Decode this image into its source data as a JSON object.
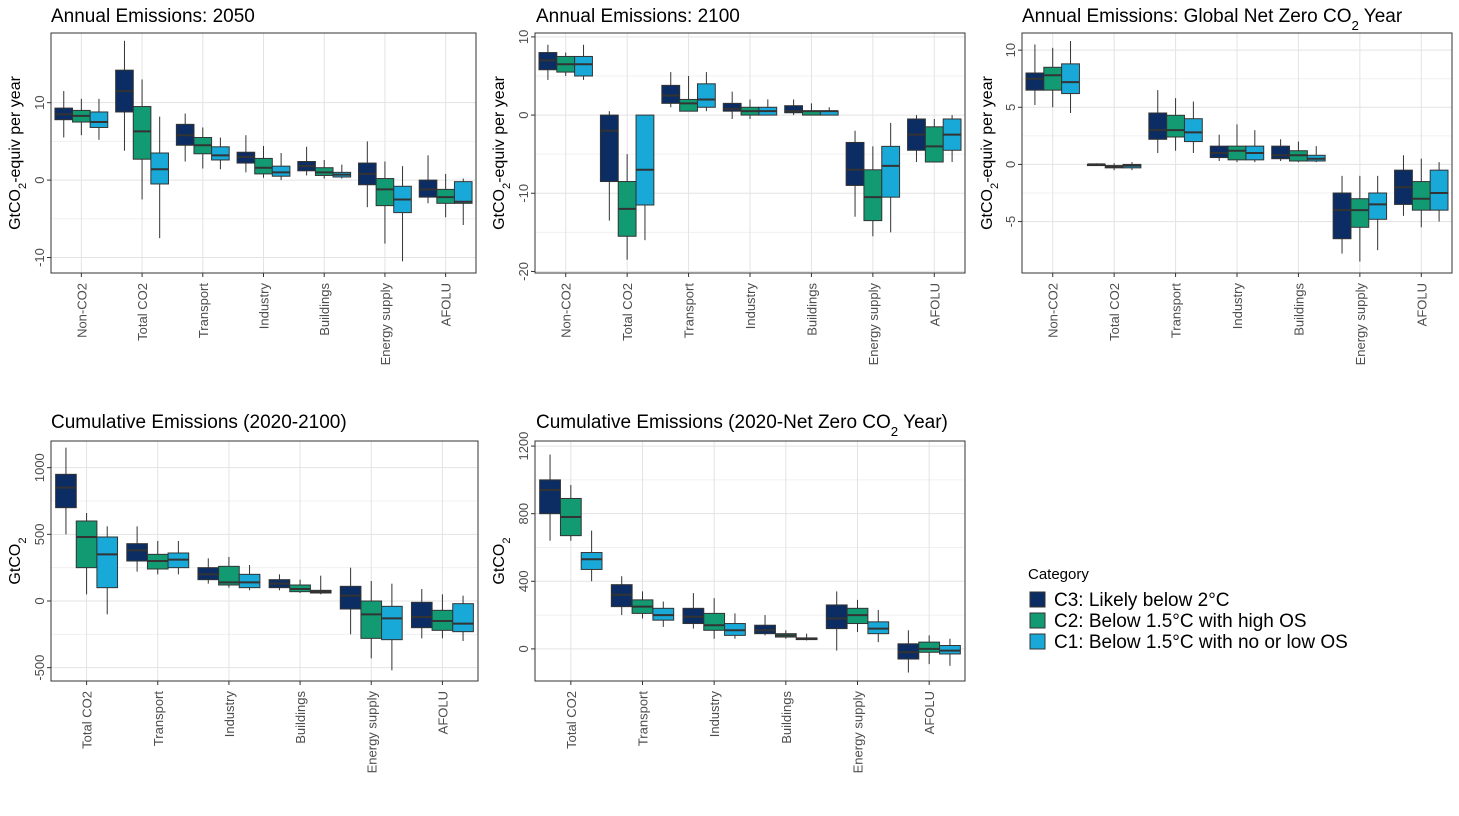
{
  "legend": {
    "title": "Category",
    "items": [
      {
        "label": "C3: Likely below 2°C",
        "color": "#0b2d63"
      },
      {
        "label": "C2: Below 1.5°C with high OS",
        "color": "#129a73"
      },
      {
        "label": "C1: Below 1.5°C with no or low OS",
        "color": "#18a9d8"
      }
    ]
  },
  "chart_data": [
    {
      "type": "box",
      "title": "Annual Emissions: 2050",
      "ylabel": "GtCO₂-equiv per year",
      "ylim": [
        -12,
        19
      ],
      "yticks": [
        -10,
        0,
        10
      ],
      "categories": [
        "Non-CO2",
        "Total CO2",
        "Transport",
        "Industry",
        "Buildings",
        "Energy supply",
        "AFOLU"
      ],
      "series": [
        {
          "name": "C3: Likely below 2°C",
          "boxes": [
            [
              5.5,
              7.8,
              8.5,
              9.3,
              11.5
            ],
            [
              3.8,
              8.8,
              11.5,
              14.2,
              18.0
            ],
            [
              2.4,
              4.5,
              5.8,
              7.2,
              8.6
            ],
            [
              1.0,
              2.2,
              3.0,
              3.6,
              5.8
            ],
            [
              0.6,
              1.2,
              1.8,
              2.4,
              4.3
            ],
            [
              -3.5,
              -0.6,
              0.8,
              2.2,
              5.0
            ],
            [
              -3.0,
              -2.2,
              -1.2,
              0.0,
              3.2
            ]
          ]
        },
        {
          "name": "C2: Below 1.5°C with high OS",
          "boxes": [
            [
              5.8,
              7.5,
              8.3,
              9.0,
              10.5
            ],
            [
              -2.5,
              2.7,
              6.3,
              9.5,
              13.0
            ],
            [
              1.5,
              3.4,
              4.5,
              5.5,
              6.8
            ],
            [
              0.3,
              0.8,
              1.6,
              2.8,
              4.4
            ],
            [
              0.2,
              0.6,
              1.0,
              1.6,
              2.6
            ],
            [
              -8.2,
              -3.3,
              -1.2,
              0.2,
              2.4
            ],
            [
              -4.8,
              -3.0,
              -2.2,
              -1.2,
              0.8
            ]
          ]
        },
        {
          "name": "C1: Below 1.5°C with no or low OS",
          "boxes": [
            [
              5.2,
              6.8,
              7.5,
              8.8,
              10.5
            ],
            [
              -7.5,
              -0.5,
              1.4,
              3.5,
              8.2
            ],
            [
              1.4,
              2.6,
              3.2,
              4.3,
              5.5
            ],
            [
              0.0,
              0.5,
              1.0,
              1.8,
              3.5
            ],
            [
              0.2,
              0.4,
              0.7,
              1.0,
              2.0
            ],
            [
              -10.5,
              -4.2,
              -2.5,
              -0.8,
              1.8
            ],
            [
              -5.8,
              -3.0,
              -2.8,
              -0.2,
              0.2
            ]
          ]
        }
      ]
    },
    {
      "type": "box",
      "title": "Annual Emissions: 2100",
      "ylabel": "GtCO₂-equiv per year",
      "ylim": [
        -20.2,
        10.5
      ],
      "yticks": [
        -20,
        -10,
        0,
        10
      ],
      "categories": [
        "Non-CO2",
        "Total CO2",
        "Transport",
        "Industry",
        "Buildings",
        "Energy supply",
        "AFOLU"
      ],
      "series": [
        {
          "name": "C3: Likely below 2°C",
          "boxes": [
            [
              4.5,
              5.8,
              7.0,
              8.0,
              9.0
            ],
            [
              -13.5,
              -8.5,
              -2.0,
              0.0,
              0.5
            ],
            [
              1.0,
              1.5,
              2.5,
              3.8,
              5.5
            ],
            [
              -0.5,
              0.5,
              0.8,
              1.5,
              3.0
            ],
            [
              0.0,
              0.3,
              0.5,
              1.2,
              2.0
            ],
            [
              -13.0,
              -9.0,
              -7.0,
              -3.5,
              -2.0
            ],
            [
              -6.0,
              -4.5,
              -2.5,
              -0.5,
              0.0
            ]
          ]
        },
        {
          "name": "C2: Below 1.5°C with high OS",
          "boxes": [
            [
              5.0,
              5.5,
              6.5,
              7.5,
              8.0
            ],
            [
              -18.5,
              -15.5,
              -12.0,
              -8.5,
              -5.0
            ],
            [
              0.5,
              0.5,
              1.5,
              2.0,
              5.0
            ],
            [
              -0.5,
              0.0,
              0.5,
              1.0,
              2.0
            ],
            [
              0.0,
              0.0,
              0.5,
              0.5,
              1.5
            ],
            [
              -15.5,
              -13.5,
              -10.5,
              -7.0,
              -4.0
            ],
            [
              -6.0,
              -6.0,
              -4.0,
              -1.5,
              -0.5
            ]
          ]
        },
        {
          "name": "C1: Below 1.5°C with no or low OS",
          "boxes": [
            [
              4.5,
              5.0,
              6.5,
              7.5,
              9.0
            ],
            [
              -16.0,
              -11.5,
              -7.0,
              0.0,
              0.0
            ],
            [
              0.5,
              1.0,
              2.0,
              4.0,
              5.5
            ],
            [
              0.0,
              0.0,
              0.5,
              1.0,
              2.0
            ],
            [
              0.0,
              0.0,
              0.5,
              0.5,
              1.0
            ],
            [
              -15.0,
              -10.5,
              -6.5,
              -4.0,
              -1.0
            ],
            [
              -6.0,
              -4.5,
              -2.5,
              -0.5,
              0.0
            ]
          ]
        }
      ]
    },
    {
      "type": "box",
      "title": "Annual Emissions: Global Net Zero CO₂ Year",
      "ylabel": "GtCO₂-equiv per year",
      "ylim": [
        -9.5,
        11.5
      ],
      "yticks": [
        -5,
        0,
        5,
        10
      ],
      "categories": [
        "Non-CO2",
        "Total CO2",
        "Transport",
        "Industry",
        "Buildings",
        "Energy supply",
        "AFOLU"
      ],
      "series": [
        {
          "name": "C3: Likely below 2°C",
          "boxes": [
            [
              5.2,
              6.5,
              7.5,
              8.0,
              10.5
            ],
            [
              -0.1,
              -0.1,
              0.0,
              0.0,
              0.1
            ],
            [
              1.0,
              2.2,
              3.0,
              4.5,
              6.5
            ],
            [
              0.3,
              0.6,
              1.0,
              1.6,
              2.6
            ],
            [
              0.3,
              0.5,
              0.8,
              1.6,
              2.2
            ],
            [
              -7.8,
              -6.5,
              -4.0,
              -2.5,
              -1.0
            ],
            [
              -4.5,
              -3.5,
              -2.0,
              -0.5,
              0.8
            ]
          ]
        },
        {
          "name": "C2: Below 1.5°C with high OS",
          "boxes": [
            [
              5.0,
              6.5,
              7.8,
              8.5,
              10.2
            ],
            [
              -0.5,
              -0.3,
              -0.2,
              -0.1,
              0.1
            ],
            [
              1.2,
              2.4,
              3.0,
              4.3,
              5.8
            ],
            [
              0.2,
              0.4,
              1.2,
              1.6,
              3.5
            ],
            [
              0.2,
              0.3,
              0.8,
              1.2,
              2.0
            ],
            [
              -8.5,
              -5.5,
              -4.0,
              -3.0,
              -1.0
            ],
            [
              -5.5,
              -4.0,
              -3.0,
              -1.5,
              0.5
            ]
          ]
        },
        {
          "name": "C1: Below 1.5°C with no or low OS",
          "boxes": [
            [
              4.5,
              6.2,
              7.2,
              8.8,
              10.8
            ],
            [
              -0.5,
              -0.3,
              -0.1,
              0.0,
              0.2
            ],
            [
              1.0,
              2.0,
              2.8,
              4.0,
              5.5
            ],
            [
              0.2,
              0.4,
              1.0,
              1.6,
              3.0
            ],
            [
              0.2,
              0.3,
              0.5,
              0.8,
              1.6
            ],
            [
              -7.5,
              -4.8,
              -3.5,
              -2.5,
              -1.0
            ],
            [
              -5.0,
              -4.0,
              -2.5,
              -0.5,
              0.2
            ]
          ]
        }
      ]
    },
    {
      "type": "box",
      "title": "Cumulative Emissions (2020-2100)",
      "ylabel": "GtCO₂",
      "ylim": [
        -600,
        1200
      ],
      "yticks": [
        -500,
        0,
        500,
        1000
      ],
      "categories": [
        "Total CO2",
        "Transport",
        "Industry",
        "Buildings",
        "Energy supply",
        "AFOLU"
      ],
      "series": [
        {
          "name": "C3: Likely below 2°C",
          "boxes": [
            [
              500,
              700,
              850,
              950,
              1150
            ],
            [
              220,
              300,
              380,
              430,
              560
            ],
            [
              130,
              160,
              200,
              250,
              320
            ],
            [
              80,
              100,
              130,
              160,
              200
            ],
            [
              -250,
              -60,
              40,
              110,
              250
            ],
            [
              -280,
              -200,
              -120,
              -10,
              90
            ]
          ]
        },
        {
          "name": "C2: Below 1.5°C with high OS",
          "boxes": [
            [
              50,
              250,
              480,
              600,
              660
            ],
            [
              200,
              240,
              300,
              350,
              450
            ],
            [
              100,
              120,
              140,
              260,
              330
            ],
            [
              60,
              70,
              90,
              120,
              160
            ],
            [
              -430,
              -280,
              -100,
              0,
              150
            ],
            [
              -280,
              -220,
              -150,
              -70,
              50
            ]
          ]
        },
        {
          "name": "C1: Below 1.5°C with no or low OS",
          "boxes": [
            [
              -100,
              100,
              350,
              480,
              560
            ],
            [
              200,
              250,
              310,
              360,
              450
            ],
            [
              80,
              100,
              140,
              200,
              270
            ],
            [
              50,
              60,
              70,
              80,
              190
            ],
            [
              -520,
              -290,
              -130,
              -40,
              130
            ],
            [
              -300,
              -230,
              -170,
              -20,
              40
            ]
          ]
        }
      ]
    },
    {
      "type": "box",
      "title": "Cumulative Emissions (2020-Net Zero CO₂ Year)",
      "ylabel": "GtCO₂",
      "ylim": [
        -190,
        1230
      ],
      "yticks": [
        0,
        400,
        800,
        1200
      ],
      "categories": [
        "Total CO2",
        "Transport",
        "Industry",
        "Buildings",
        "Energy supply",
        "AFOLU"
      ],
      "series": [
        {
          "name": "C3: Likely below 2°C",
          "boxes": [
            [
              640,
              800,
              940,
              1000,
              1150
            ],
            [
              200,
              250,
              320,
              380,
              430
            ],
            [
              120,
              150,
              190,
              240,
              330
            ],
            [
              80,
              90,
              110,
              140,
              200
            ],
            [
              -10,
              120,
              180,
              260,
              340
            ],
            [
              -140,
              -60,
              -20,
              30,
              110
            ]
          ]
        },
        {
          "name": "C2: Below 1.5°C with high OS",
          "boxes": [
            [
              640,
              670,
              780,
              890,
              970
            ],
            [
              180,
              210,
              250,
              290,
              340
            ],
            [
              60,
              110,
              140,
              210,
              300
            ],
            [
              60,
              70,
              80,
              90,
              110
            ],
            [
              100,
              150,
              200,
              240,
              290
            ],
            [
              -90,
              -20,
              0,
              40,
              80
            ]
          ]
        },
        {
          "name": "C1: Below 1.5°C with no or low OS",
          "boxes": [
            [
              400,
              470,
              530,
              570,
              700
            ],
            [
              130,
              170,
              200,
              240,
              280
            ],
            [
              60,
              80,
              110,
              150,
              210
            ],
            [
              50,
              55,
              60,
              65,
              90
            ],
            [
              40,
              90,
              120,
              160,
              230
            ],
            [
              -100,
              -30,
              -10,
              20,
              60
            ]
          ]
        }
      ]
    }
  ]
}
